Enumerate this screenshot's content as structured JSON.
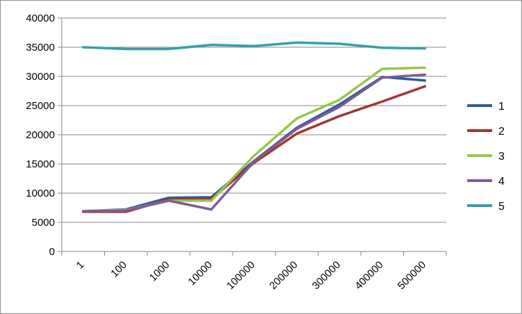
{
  "chart_data": {
    "type": "line",
    "title": "",
    "xlabel": "",
    "ylabel": "",
    "categories": [
      "1",
      "100",
      "1000",
      "10000",
      "100000",
      "200000",
      "300000",
      "400000",
      "500000"
    ],
    "ylim": [
      0,
      40000
    ],
    "yticks": [
      0,
      5000,
      10000,
      15000,
      20000,
      25000,
      30000,
      35000,
      40000
    ],
    "grid": "horizontal",
    "legend_position": "right",
    "series": [
      {
        "name": "1",
        "color": "#2e5d93",
        "values": [
          6900,
          7200,
          9200,
          9300,
          15500,
          21200,
          25200,
          29900,
          29300
        ]
      },
      {
        "name": "2",
        "color": "#a5322f",
        "values": [
          6800,
          6800,
          8900,
          9000,
          15200,
          20200,
          23200,
          25700,
          28300
        ]
      },
      {
        "name": "3",
        "color": "#9ac54c",
        "values": [
          6900,
          7100,
          8700,
          8700,
          16400,
          22800,
          26000,
          31300,
          31500
        ]
      },
      {
        "name": "4",
        "color": "#7f5a9a",
        "values": [
          6900,
          7000,
          8700,
          7200,
          15400,
          21000,
          24800,
          29800,
          30300
        ]
      },
      {
        "name": "5",
        "color": "#34a0a8",
        "values": [
          35000,
          34700,
          34700,
          35400,
          35200,
          35800,
          35600,
          34900,
          34800
        ]
      }
    ]
  }
}
